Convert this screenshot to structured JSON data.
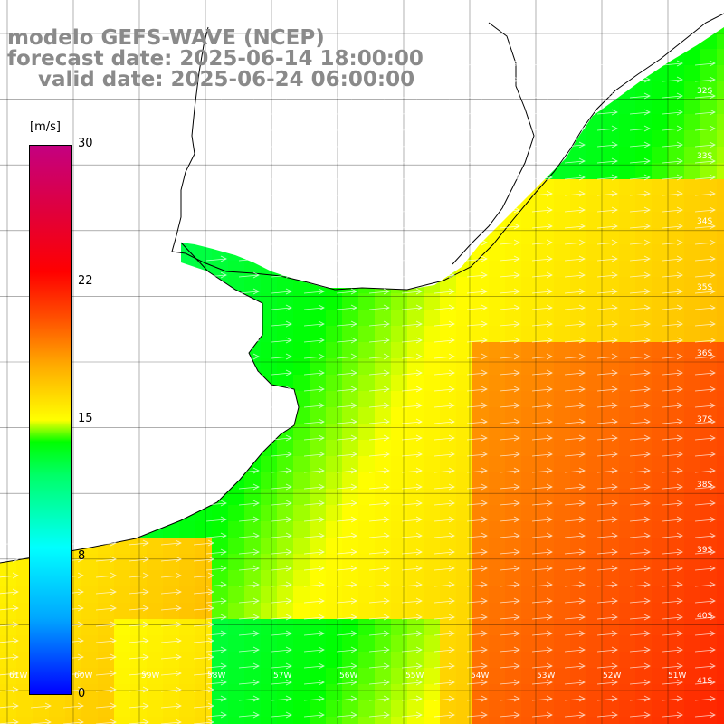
{
  "title": {
    "line1": "modelo GEFS-WAVE (NCEP)",
    "line2": "forecast date: 2025-06-14 18:00:00",
    "line3": "valid date: 2025-06-24 06:00:00"
  },
  "colorbar": {
    "unit": "[m/s]",
    "ticks": [
      "30",
      "22",
      "15",
      "8",
      "0"
    ]
  },
  "lat_labels": [
    "32S",
    "33S",
    "34S",
    "35S",
    "36S",
    "37S",
    "38S",
    "39S",
    "40S",
    "41S"
  ],
  "lon_labels": [
    "61W",
    "60W",
    "59W",
    "58W",
    "57W",
    "56W",
    "55W",
    "54W",
    "53W",
    "52W",
    "51W"
  ],
  "colors": {
    "title": "#8a8a8a",
    "land": "#ffffff",
    "grid": "#000000",
    "arrows": "#ffffff"
  },
  "field": {
    "variable": "wind speed",
    "unit": "m/s",
    "wind_direction": "from west to east (eastward arrows)"
  }
}
